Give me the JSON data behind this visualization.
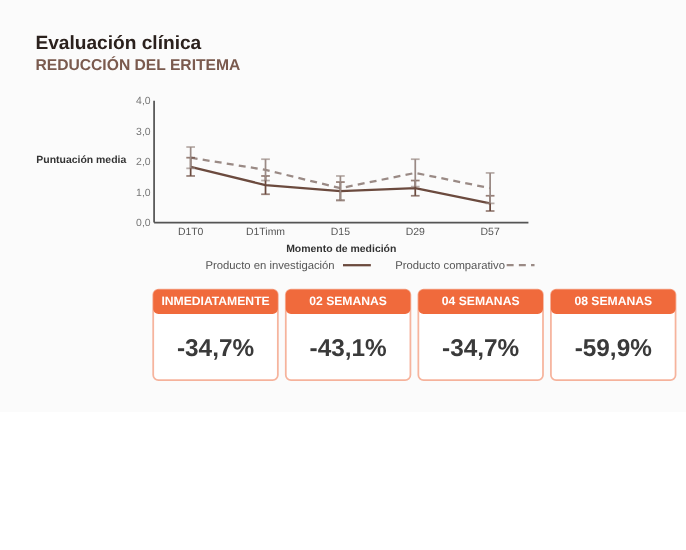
{
  "chart_data": [
    {
      "type": "line",
      "title": "Evaluación clínica",
      "subtitle": "REDUCCIÓN DEL ERITEMA",
      "xlabel": "Momento de medición",
      "ylabel": "Puntuación media",
      "categories": [
        "D1T0",
        "D1Timm",
        "D15",
        "D29",
        "D57"
      ],
      "series": [
        {
          "name": "Producto en investigación",
          "color": "#6b4a3e",
          "line_style": "solid",
          "values": [
            1.8,
            1.2,
            1.0,
            1.1,
            0.6
          ],
          "errors": [
            0.3,
            0.3,
            0.3,
            0.25,
            0.25
          ]
        },
        {
          "name": "Producto comparativo",
          "color": "#9a8a85",
          "line_style": "dashed",
          "values": [
            2.1,
            1.7,
            1.1,
            1.6,
            1.1
          ],
          "errors": [
            0.35,
            0.35,
            0.4,
            0.45,
            0.5
          ]
        }
      ],
      "ylim": [
        0,
        4
      ],
      "yticks": [
        {
          "value": 0,
          "label": "0,0"
        },
        {
          "value": 1,
          "label": "1,0"
        },
        {
          "value": 2,
          "label": "2,0"
        },
        {
          "value": 3,
          "label": "3,0"
        },
        {
          "value": 4,
          "label": "4,0"
        }
      ],
      "grid": false,
      "legend": "bottom",
      "marker": "none"
    },
    {
      "type": "other",
      "color": "#f06a3c",
      "categories": [
        "INMEDIATAMENTE",
        "02 SEMANAS",
        "04 SEMANAS",
        "08 SEMANAS"
      ],
      "annotations": [
        "-34,7%",
        "-43,1%",
        "-34,7%",
        "-59,9%"
      ]
    }
  ]
}
